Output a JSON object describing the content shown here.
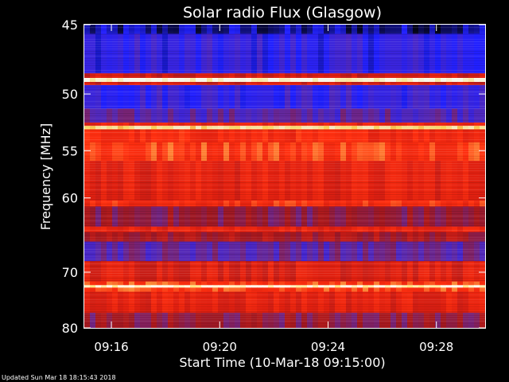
{
  "chart_data": {
    "type": "heatmap",
    "title": "Solar radio Flux (Glasgow)",
    "xlabel": "Start Time (10-Mar-18 09:15:00)",
    "ylabel": "Frequency [MHz]",
    "x_ticks": [
      "09:16",
      "09:20",
      "09:24",
      "09:28"
    ],
    "x_tick_minutes": [
      1,
      5,
      9,
      13
    ],
    "xlim_minutes": [
      0,
      14.8
    ],
    "y_ticks": [
      45,
      50,
      55,
      60,
      70,
      80
    ],
    "ylim": [
      45,
      80
    ],
    "y_scale": "reciprocal",
    "colormap": [
      "#000000",
      "#2020ff",
      "#5a2ab0",
      "#a01820",
      "#e02010",
      "#ff3010",
      "#ffe060",
      "#fffff0"
    ],
    "bands": [
      {
        "from": 44.5,
        "to": 45.6,
        "level": 0.08
      },
      {
        "from": 45.6,
        "to": 48.4,
        "level": 0.18
      },
      {
        "from": 48.4,
        "to": 48.75,
        "level": 0.55
      },
      {
        "from": 48.75,
        "to": 49.05,
        "level": 0.98
      },
      {
        "from": 49.05,
        "to": 49.3,
        "level": 0.55
      },
      {
        "from": 49.3,
        "to": 51.2,
        "level": 0.2
      },
      {
        "from": 51.2,
        "to": 52.4,
        "level": 0.28
      },
      {
        "from": 52.4,
        "to": 52.7,
        "level": 0.6
      },
      {
        "from": 52.7,
        "to": 53.0,
        "level": 0.9
      },
      {
        "from": 53.0,
        "to": 54.2,
        "level": 0.66
      },
      {
        "from": 54.2,
        "to": 56.0,
        "level": 0.72
      },
      {
        "from": 56.0,
        "to": 60.3,
        "level": 0.6
      },
      {
        "from": 60.3,
        "to": 61.0,
        "level": 0.68
      },
      {
        "from": 61.0,
        "to": 63.5,
        "level": 0.4
      },
      {
        "from": 63.5,
        "to": 64.2,
        "level": 0.62
      },
      {
        "from": 64.2,
        "to": 65.5,
        "level": 0.45
      },
      {
        "from": 65.5,
        "to": 68.3,
        "level": 0.3
      },
      {
        "from": 68.3,
        "to": 71.5,
        "level": 0.58
      },
      {
        "from": 71.5,
        "to": 72.1,
        "level": 0.72
      },
      {
        "from": 72.1,
        "to": 72.5,
        "level": 0.96
      },
      {
        "from": 72.5,
        "to": 73.2,
        "level": 0.72
      },
      {
        "from": 73.2,
        "to": 77.0,
        "level": 0.6
      },
      {
        "from": 77.0,
        "to": 80.5,
        "level": 0.4
      }
    ]
  },
  "footer": {
    "updated_text": "Updated Sun Mar 18 18:15:43 2018"
  }
}
